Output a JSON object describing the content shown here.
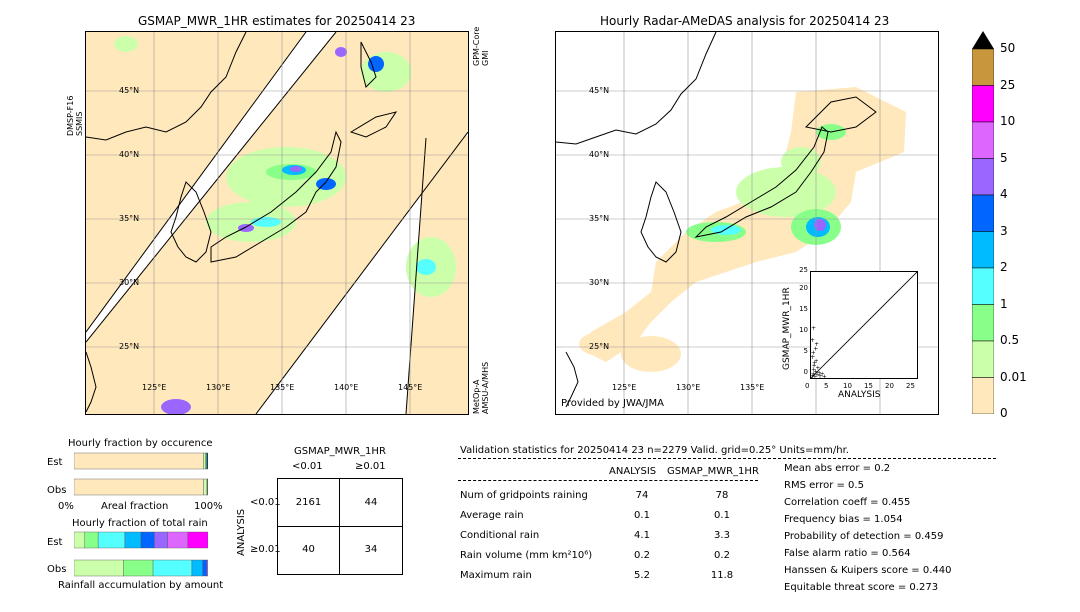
{
  "left_map": {
    "title": "GSMAP_MWR_1HR estimates for 20250414 23",
    "sat_left": "DMSP-F16\nSSMIS",
    "sat_right_top": "GPM-Core\nGMI",
    "sat_right_bottom": "MetOp-A\nAMSU-A/MHS",
    "lat_labels": [
      "45°N",
      "40°N",
      "35°N",
      "30°N",
      "25°N"
    ],
    "lon_labels": [
      "125°E",
      "130°E",
      "135°E",
      "140°E",
      "145°E"
    ]
  },
  "right_map": {
    "title": "Hourly Radar-AMeDAS analysis for 20250414 23",
    "lat_labels": [
      "45°N",
      "40°N",
      "35°N",
      "30°N",
      "25°N"
    ],
    "lon_labels": [
      "125°E",
      "130°E",
      "135°E"
    ],
    "credit": "Provided by JWA/JMA"
  },
  "colorbar": {
    "labels": [
      "50",
      "25",
      "10",
      "5",
      "4",
      "3",
      "2",
      "1",
      "0.5",
      "0.01",
      "0"
    ],
    "colors": [
      "#c8963c",
      "#ff00ff",
      "#dd66ff",
      "#9966ff",
      "#0066ff",
      "#00bbff",
      "#55ffff",
      "#88ff88",
      "#ccffaa",
      "#ffe8bb"
    ]
  },
  "scatter": {
    "xlabel": "ANALYSIS",
    "ylabel": "GSMAP_MWR_1HR",
    "ticks": [
      "0",
      "5",
      "10",
      "15",
      "20",
      "25"
    ]
  },
  "occurrence": {
    "title": "Hourly fraction by occurence",
    "row_est": "Est",
    "row_obs": "Obs",
    "axis_left": "0%",
    "axis_mid": "Areal fraction",
    "axis_right": "100%"
  },
  "total_rain": {
    "title": "Hourly fraction of total rain",
    "row_est": "Est",
    "row_obs": "Obs",
    "axis_label": "Rainfall accumulation by amount"
  },
  "contingency": {
    "header": "GSMAP_MWR_1HR",
    "col1": "<0.01",
    "col2": "≥0.01",
    "side": "ANALYSIS",
    "row1": "<0.01",
    "row2": "≥0.01",
    "cells": [
      "2161",
      "44",
      "40",
      "34"
    ]
  },
  "validation": {
    "header": "Validation statistics for 20250414 23  n=2279 Valid. grid=0.25° Units=mm/hr.",
    "col_analysis": "ANALYSIS",
    "col_gsmap": "GSMAP_MWR_1HR",
    "rows": [
      {
        "label": "Num of gridpoints raining",
        "analysis": "74",
        "gsmap": "78"
      },
      {
        "label": "Average rain",
        "analysis": "0.1",
        "gsmap": "0.1"
      },
      {
        "label": "Conditional rain",
        "analysis": "4.1",
        "gsmap": "3.3"
      },
      {
        "label": "Rain volume (mm km²10⁶)",
        "analysis": "0.2",
        "gsmap": "0.2"
      },
      {
        "label": "Maximum rain",
        "analysis": "5.2",
        "gsmap": "11.8"
      }
    ],
    "scores": [
      "Mean abs error =    0.2",
      "RMS error =    0.5",
      "Correlation coeff =  0.455",
      "Frequency bias =  1.054",
      "Probability of detection =  0.459",
      "False alarm ratio =  0.564",
      "Hanssen & Kuipers score =  0.440",
      "Equitable threat score =  0.273"
    ]
  },
  "chart_data": [
    {
      "type": "scatter",
      "xlabel": "ANALYSIS",
      "ylabel": "GSMAP_MWR_1HR",
      "xlim": [
        0,
        25
      ],
      "ylim": [
        0,
        25
      ],
      "x": [
        0.2,
        0.4,
        0.5,
        0.6,
        0.8,
        1.0,
        1.1,
        1.3,
        1.5,
        1.8,
        2.0,
        0.3,
        0.7,
        1.2,
        2.5,
        3.0,
        0.5,
        1.0,
        0.2,
        0.4
      ],
      "y": [
        0.5,
        1.0,
        2.0,
        3.0,
        0.3,
        1.5,
        4.0,
        0.8,
        2.5,
        1.2,
        0.5,
        5.0,
        3.5,
        8.0,
        1.0,
        0.4,
        11.8,
        7.0,
        9.0,
        6.0
      ]
    },
    {
      "type": "bar",
      "title": "Hourly fraction by occurence",
      "categories": [
        "Est",
        "Obs"
      ],
      "series": [
        {
          "values": [
            0.966,
            0.967
          ]
        },
        {
          "values": [
            0.014,
            0.025
          ]
        },
        {
          "values": [
            0.008,
            0.004
          ]
        },
        {
          "values": [
            0.006,
            0.002
          ]
        },
        {
          "values": [
            0.006,
            0.002
          ]
        }
      ]
    },
    {
      "type": "bar",
      "title": "Hourly fraction of total rain",
      "categories": [
        "Est",
        "Obs"
      ],
      "series": [
        {
          "values": [
            0.08,
            0.37
          ]
        },
        {
          "values": [
            0.1,
            0.22
          ]
        },
        {
          "values": [
            0.2,
            0.29
          ]
        },
        {
          "values": [
            0.12,
            0.08
          ]
        },
        {
          "values": [
            0.1,
            0.03
          ]
        },
        {
          "values": [
            0.1,
            0.01
          ]
        },
        {
          "values": [
            0.15,
            0.0
          ]
        },
        {
          "values": [
            0.15,
            0.0
          ]
        }
      ]
    }
  ]
}
